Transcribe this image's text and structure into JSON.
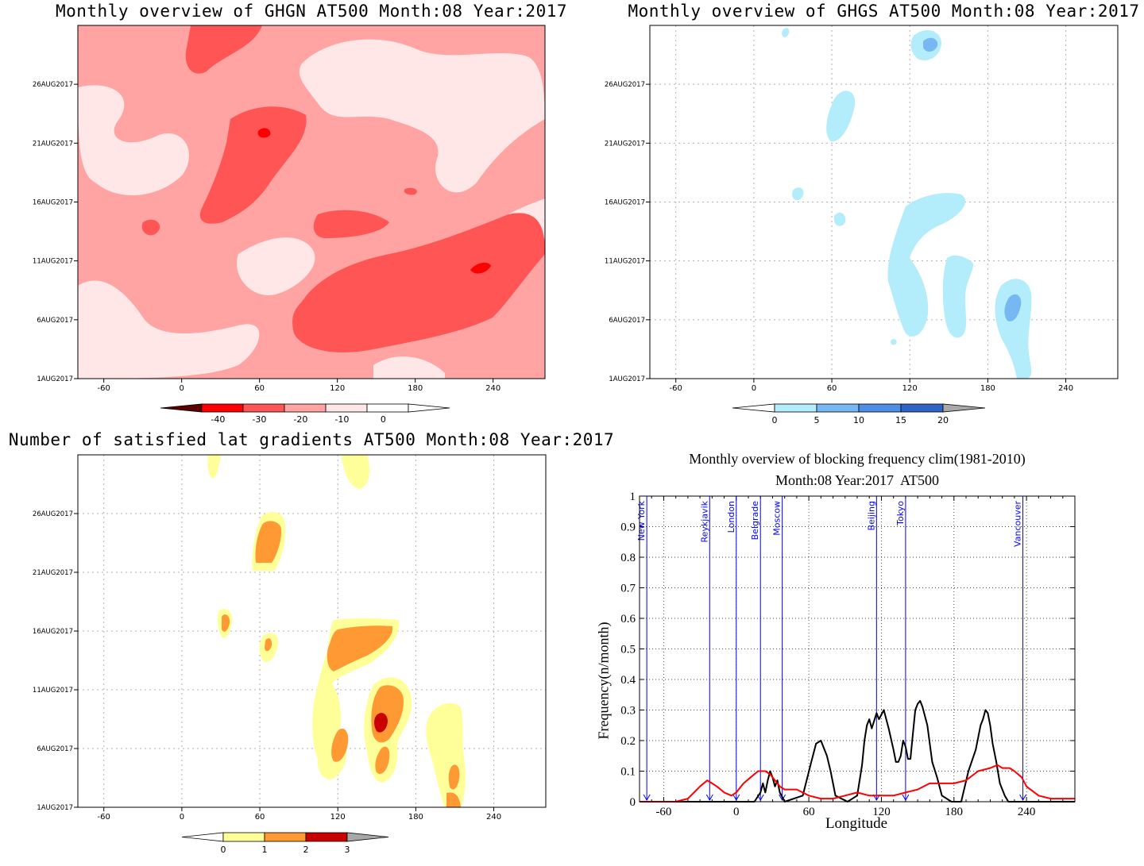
{
  "panels": {
    "ghgn": {
      "title": "Monthly overview of GHGN AT500 Month:08 Year:2017",
      "x_ticks": [
        "-60",
        "0",
        "60",
        "120",
        "180",
        "240"
      ],
      "y_ticks": [
        "1AUG2017",
        "6AUG2017",
        "11AUG2017",
        "16AUG2017",
        "21AUG2017",
        "26AUG2017"
      ],
      "colorbar_labels": [
        "-40",
        "-30",
        "-20",
        "-10",
        "0"
      ],
      "colors": [
        "#5a0000",
        "#ff0000",
        "#ff5555",
        "#ffa3a3",
        "#ffe7e7"
      ]
    },
    "ghgs": {
      "title": "Monthly overview of GHGS AT500 Month:08 Year:2017",
      "x_ticks": [
        "-60",
        "0",
        "60",
        "120",
        "180",
        "240"
      ],
      "y_ticks": [
        "1AUG2017",
        "6AUG2017",
        "11AUG2017",
        "16AUG2017",
        "21AUG2017",
        "26AUG2017"
      ],
      "colorbar_labels": [
        "0",
        "5",
        "10",
        "15",
        "20"
      ],
      "colors": [
        "#b3ecfa",
        "#78b8f2",
        "#4e8ee6",
        "#2f63c8",
        "#a8a8a8"
      ]
    },
    "gradients": {
      "title": "Number of satisfied lat gradients AT500 Month:08 Year:2017",
      "x_ticks": [
        "-60",
        "0",
        "60",
        "120",
        "180",
        "240"
      ],
      "y_ticks": [
        "1AUG2017",
        "6AUG2017",
        "11AUG2017",
        "16AUG2017",
        "21AUG2017",
        "26AUG2017"
      ],
      "colorbar_labels": [
        "0",
        "1",
        "2",
        "3"
      ],
      "colors": [
        "#ffff99",
        "#ff9933",
        "#c80000",
        "#a8a8a8"
      ]
    }
  },
  "chart_data": {
    "type": "line",
    "title": "Monthly overview of blocking frequency clim(1981-2010)",
    "subtitle": "Month:08 Year:2017  AT500",
    "xlabel": "Longitude",
    "ylabel": "Frequency(n/month)",
    "xlim": [
      -80,
      280
    ],
    "ylim": [
      0,
      1
    ],
    "x_ticks": [
      -60,
      0,
      60,
      120,
      180,
      240
    ],
    "y_ticks": [
      0,
      0.1,
      0.2,
      0.3,
      0.4,
      0.5,
      0.6,
      0.7,
      0.8,
      0.9,
      1
    ],
    "grid": true,
    "cities": [
      {
        "name": "New York",
        "lon": -74
      },
      {
        "name": "Reykjavik",
        "lon": -22
      },
      {
        "name": "London",
        "lon": 0
      },
      {
        "name": "Belgrade",
        "lon": 20
      },
      {
        "name": "Moscow",
        "lon": 38
      },
      {
        "name": "Beijing",
        "lon": 116
      },
      {
        "name": "Tokyo",
        "lon": 140
      },
      {
        "name": "Vancouver",
        "lon": 237
      }
    ],
    "series": [
      {
        "color": "#000000",
        "x": [
          -80,
          15,
          20,
          22,
          24,
          26,
          28,
          30,
          32,
          34,
          36,
          40,
          55,
          62,
          66,
          70,
          75,
          78,
          82,
          92,
          100,
          104,
          106,
          108,
          110,
          112,
          116,
          118,
          122,
          126,
          130,
          132,
          134,
          136,
          138,
          140,
          142,
          144,
          146,
          148,
          150,
          152,
          154,
          158,
          162,
          166,
          170,
          178,
          186,
          192,
          198,
          202,
          204,
          206,
          208,
          210,
          212,
          215,
          218,
          222,
          225,
          229,
          280
        ],
        "y": [
          0,
          0,
          0.03,
          0.06,
          0.03,
          0.07,
          0.1,
          0.08,
          0.05,
          0.07,
          0.03,
          0,
          0.02,
          0.13,
          0.19,
          0.2,
          0.15,
          0.1,
          0.02,
          0,
          0.02,
          0.12,
          0.2,
          0.25,
          0.27,
          0.24,
          0.29,
          0.27,
          0.3,
          0.24,
          0.17,
          0.13,
          0.13,
          0.15,
          0.2,
          0.18,
          0.14,
          0.14,
          0.22,
          0.3,
          0.32,
          0.33,
          0.31,
          0.25,
          0.13,
          0.08,
          0.02,
          0,
          0,
          0.1,
          0.17,
          0.25,
          0.27,
          0.3,
          0.29,
          0.25,
          0.19,
          0.13,
          0.06,
          0.02,
          0,
          0,
          0
        ]
      },
      {
        "color": "#ff0000",
        "x": [
          -80,
          -50,
          -40,
          -30,
          -24,
          -20,
          -16,
          -10,
          -4,
          0,
          6,
          12,
          18,
          24,
          28,
          32,
          36,
          40,
          50,
          60,
          70,
          80,
          90,
          100,
          110,
          120,
          130,
          140,
          150,
          160,
          170,
          180,
          190,
          200,
          210,
          216,
          220,
          226,
          230,
          236,
          240,
          250,
          260,
          270,
          280
        ],
        "y": [
          0,
          0,
          0.01,
          0.05,
          0.07,
          0.06,
          0.05,
          0.03,
          0.02,
          0.03,
          0.06,
          0.08,
          0.1,
          0.1,
          0.09,
          0.07,
          0.05,
          0.04,
          0.04,
          0.02,
          0.01,
          0.01,
          0.02,
          0.03,
          0.02,
          0.02,
          0.02,
          0.03,
          0.04,
          0.06,
          0.06,
          0.06,
          0.07,
          0.1,
          0.11,
          0.12,
          0.11,
          0.11,
          0.1,
          0.08,
          0.05,
          0.02,
          0.01,
          0.01,
          0.01
        ]
      }
    ]
  }
}
